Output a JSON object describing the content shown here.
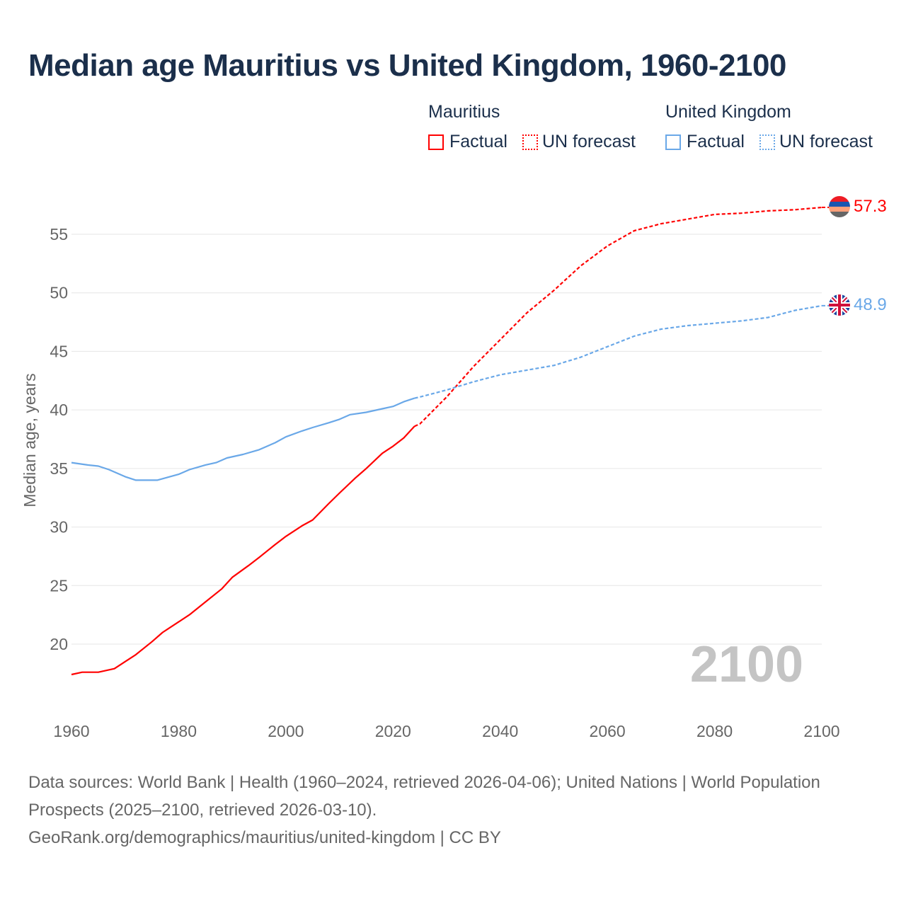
{
  "chart_data": {
    "type": "line",
    "title": "Median age Mauritius vs United Kingdom, 1960-2100",
    "xlabel": "",
    "ylabel": "Median age, years",
    "xlim": [
      1960,
      2100
    ],
    "ylim": [
      15,
      58
    ],
    "x_ticks": [
      "1960",
      "1980",
      "2000",
      "2020",
      "2040",
      "2060",
      "2080",
      "2100"
    ],
    "y_ticks": [
      "20",
      "25",
      "30",
      "35",
      "40",
      "45",
      "50",
      "55"
    ],
    "grid": true,
    "watermark_year": "2100",
    "legend": {
      "placement": "top-right",
      "groups": [
        {
          "name": "Mauritius",
          "factual": "Factual",
          "forecast": "UN forecast"
        },
        {
          "name": "United Kingdom",
          "factual": "Factual",
          "forecast": "UN forecast"
        }
      ]
    },
    "series": [
      {
        "name": "Mauritius",
        "color": "#ff0000",
        "end_label": "57.3",
        "flag": "mauritius-flag",
        "factual": {
          "x": [
            1960,
            1962,
            1965,
            1968,
            1970,
            1972,
            1975,
            1977,
            1980,
            1982,
            1985,
            1988,
            1990,
            1993,
            1995,
            1998,
            2000,
            2003,
            2005,
            2008,
            2010,
            2013,
            2015,
            2018,
            2020,
            2022,
            2024
          ],
          "y": [
            17.4,
            17.6,
            17.6,
            17.9,
            18.5,
            19.1,
            20.2,
            21.0,
            21.9,
            22.5,
            23.6,
            24.7,
            25.7,
            26.7,
            27.4,
            28.5,
            29.2,
            30.1,
            30.6,
            32.0,
            32.9,
            34.2,
            35.0,
            36.3,
            36.9,
            37.6,
            38.6
          ]
        },
        "forecast": {
          "x": [
            2024,
            2025,
            2030,
            2035,
            2040,
            2045,
            2050,
            2055,
            2060,
            2065,
            2070,
            2075,
            2080,
            2085,
            2090,
            2095,
            2100
          ],
          "y": [
            38.6,
            38.8,
            41.1,
            43.7,
            46.0,
            48.3,
            50.2,
            52.3,
            54.0,
            55.3,
            55.9,
            56.3,
            56.7,
            56.8,
            57.0,
            57.1,
            57.3
          ]
        }
      },
      {
        "name": "United Kingdom",
        "color": "#6aa8e8",
        "end_label": "48.9",
        "flag": "united-kingdom-flag",
        "factual": {
          "x": [
            1960,
            1963,
            1965,
            1967,
            1970,
            1972,
            1976,
            1980,
            1982,
            1985,
            1987,
            1989,
            1992,
            1995,
            1998,
            2000,
            2003,
            2005,
            2008,
            2010,
            2012,
            2015,
            2018,
            2020,
            2022,
            2024
          ],
          "y": [
            35.5,
            35.3,
            35.2,
            34.9,
            34.3,
            34.0,
            34.0,
            34.5,
            34.9,
            35.3,
            35.5,
            35.9,
            36.2,
            36.6,
            37.2,
            37.7,
            38.2,
            38.5,
            38.9,
            39.2,
            39.6,
            39.8,
            40.1,
            40.3,
            40.7,
            41.0
          ]
        },
        "forecast": {
          "x": [
            2024,
            2025,
            2030,
            2035,
            2040,
            2045,
            2050,
            2055,
            2060,
            2065,
            2070,
            2075,
            2080,
            2085,
            2090,
            2095,
            2100
          ],
          "y": [
            41.0,
            41.1,
            41.7,
            42.4,
            43.0,
            43.4,
            43.8,
            44.5,
            45.4,
            46.3,
            46.9,
            47.2,
            47.4,
            47.6,
            47.9,
            48.5,
            48.9
          ]
        }
      }
    ]
  },
  "footer": {
    "sources": "Data sources: World Bank | Health (1960–2024, retrieved 2026-04-06); United Nations | World Population Prospects (2025–2100, retrieved 2026-03-10).",
    "credit": "GeoRank.org/demographics/mauritius/united-kingdom | CC BY"
  }
}
